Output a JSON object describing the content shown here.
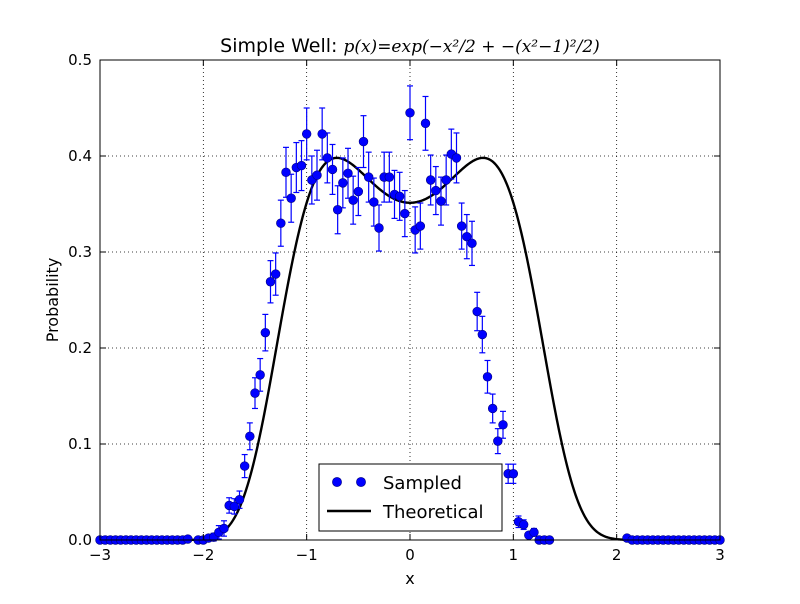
{
  "chart_data": {
    "type": "scatter",
    "title_text": "Simple Well: ",
    "title_math": "p(x)=exp(−x²/2 + −(x²−1)²/2)",
    "xlabel": "x",
    "ylabel": "Probability",
    "xlim": [
      -3,
      3
    ],
    "ylim": [
      0,
      0.5
    ],
    "xticks": [
      -3,
      -2,
      -1,
      0,
      1,
      2,
      3
    ],
    "xtick_labels": [
      "−3",
      "−2",
      "−1",
      "0",
      "1",
      "2",
      "3"
    ],
    "yticks": [
      0,
      0.1,
      0.2,
      0.3,
      0.4,
      0.5
    ],
    "ytick_labels": [
      "0.0",
      "0.1",
      "0.2",
      "0.3",
      "0.4",
      "0.5"
    ],
    "grid": true,
    "legend_placement": "lower-center",
    "series": [
      {
        "name": "Sampled",
        "kind": "points_with_errorbars",
        "color": "#0000ff",
        "points": [
          [
            -3.0,
            0.0
          ],
          [
            -2.95,
            0.0
          ],
          [
            -2.9,
            0.0
          ],
          [
            -2.85,
            0.0
          ],
          [
            -2.8,
            0.0
          ],
          [
            -2.75,
            0.0
          ],
          [
            -2.7,
            0.0
          ],
          [
            -2.65,
            0.0
          ],
          [
            -2.6,
            0.0
          ],
          [
            -2.55,
            0.0
          ],
          [
            -2.5,
            0.0
          ],
          [
            -2.45,
            0.0
          ],
          [
            -2.4,
            0.0
          ],
          [
            -2.35,
            0.0
          ],
          [
            -2.3,
            0.0
          ],
          [
            -2.25,
            0.0
          ],
          [
            -2.2,
            0.0
          ],
          [
            -2.15,
            0.001
          ],
          [
            -2.05,
            0.0
          ],
          [
            -2.0,
            0.0
          ],
          [
            -1.95,
            0.002
          ],
          [
            -1.9,
            0.003
          ],
          [
            -1.85,
            0.008
          ],
          [
            -1.8,
            0.012
          ],
          [
            -1.75,
            0.036
          ],
          [
            -1.7,
            0.035
          ],
          [
            -1.65,
            0.042
          ],
          [
            -1.6,
            0.077
          ],
          [
            -1.55,
            0.108
          ],
          [
            -1.5,
            0.153
          ],
          [
            -1.45,
            0.172
          ],
          [
            -1.4,
            0.216
          ],
          [
            -1.35,
            0.269
          ],
          [
            -1.3,
            0.277
          ],
          [
            -1.25,
            0.33
          ],
          [
            -1.2,
            0.383
          ],
          [
            -1.15,
            0.356
          ],
          [
            -1.1,
            0.388
          ],
          [
            -1.05,
            0.39
          ],
          [
            -1.0,
            0.423
          ],
          [
            -0.95,
            0.375
          ],
          [
            -0.9,
            0.38
          ],
          [
            -0.85,
            0.423
          ],
          [
            -0.8,
            0.398
          ],
          [
            -0.75,
            0.386
          ],
          [
            -0.7,
            0.344
          ],
          [
            -0.65,
            0.372
          ],
          [
            -0.6,
            0.382
          ],
          [
            -0.55,
            0.354
          ],
          [
            -0.5,
            0.363
          ],
          [
            -0.45,
            0.415
          ],
          [
            -0.4,
            0.378
          ],
          [
            -0.35,
            0.352
          ],
          [
            -0.3,
            0.325
          ],
          [
            -0.25,
            0.378
          ],
          [
            -0.2,
            0.378
          ],
          [
            -0.15,
            0.36
          ],
          [
            -0.1,
            0.358
          ],
          [
            -0.05,
            0.34
          ],
          [
            0.0,
            0.445
          ],
          [
            0.05,
            0.323
          ],
          [
            0.1,
            0.327
          ],
          [
            0.15,
            0.434
          ],
          [
            0.2,
            0.375
          ],
          [
            0.25,
            0.364
          ],
          [
            0.3,
            0.353
          ],
          [
            0.35,
            0.375
          ],
          [
            0.4,
            0.402
          ],
          [
            0.45,
            0.398
          ],
          [
            0.5,
            0.327
          ],
          [
            0.55,
            0.316
          ],
          [
            0.6,
            0.309
          ],
          [
            0.65,
            0.238
          ],
          [
            0.7,
            0.214
          ],
          [
            0.75,
            0.17
          ],
          [
            0.8,
            0.137
          ],
          [
            0.85,
            0.103
          ],
          [
            0.9,
            0.12
          ],
          [
            0.95,
            0.069
          ],
          [
            1.0,
            0.069
          ],
          [
            1.05,
            0.019
          ],
          [
            1.1,
            0.016
          ],
          [
            1.15,
            0.005
          ],
          [
            1.2,
            0.008
          ],
          [
            1.25,
            0.0
          ],
          [
            1.3,
            0.0
          ],
          [
            1.35,
            0.0
          ],
          [
            2.1,
            0.002
          ],
          [
            2.15,
            0.0
          ],
          [
            2.2,
            0.0
          ],
          [
            2.25,
            0.0
          ],
          [
            2.3,
            0.0
          ],
          [
            2.35,
            0.0
          ],
          [
            2.4,
            0.0
          ],
          [
            2.45,
            0.0
          ],
          [
            2.5,
            0.0
          ],
          [
            2.55,
            0.0
          ],
          [
            2.6,
            0.0
          ],
          [
            2.65,
            0.0
          ],
          [
            2.7,
            0.0
          ],
          [
            2.75,
            0.0
          ],
          [
            2.8,
            0.0
          ],
          [
            2.85,
            0.0
          ],
          [
            2.9,
            0.0
          ],
          [
            2.95,
            0.0
          ],
          [
            3.0,
            0.0
          ]
        ],
        "error": [
          0,
          0,
          0,
          0,
          0,
          0,
          0,
          0,
          0,
          0,
          0,
          0,
          0,
          0,
          0,
          0,
          0,
          0.002,
          0,
          0,
          0.003,
          0.004,
          0.007,
          0.008,
          0.008,
          0.008,
          0.009,
          0.012,
          0.014,
          0.016,
          0.017,
          0.019,
          0.022,
          0.022,
          0.024,
          0.026,
          0.025,
          0.026,
          0.026,
          0.027,
          0.025,
          0.026,
          0.027,
          0.026,
          0.026,
          0.025,
          0.026,
          0.026,
          0.025,
          0.025,
          0.027,
          0.026,
          0.025,
          0.024,
          0.026,
          0.026,
          0.025,
          0.025,
          0.024,
          0.028,
          0.024,
          0.024,
          0.028,
          0.026,
          0.025,
          0.025,
          0.026,
          0.026,
          0.026,
          0.024,
          0.023,
          0.023,
          0.02,
          0.019,
          0.017,
          0.015,
          0.013,
          0.014,
          0.01,
          0.01,
          0.006,
          0.005,
          0.003,
          0.004,
          0,
          0,
          0,
          0.002,
          0,
          0,
          0,
          0,
          0,
          0,
          0,
          0,
          0,
          0,
          0,
          0,
          0,
          0,
          0,
          0,
          0,
          0
        ]
      },
      {
        "name": "Theoretical",
        "kind": "line",
        "color": "#000000",
        "function": "exp(-x^2/2 - (x^2-1)^2/2), normalized"
      }
    ]
  }
}
